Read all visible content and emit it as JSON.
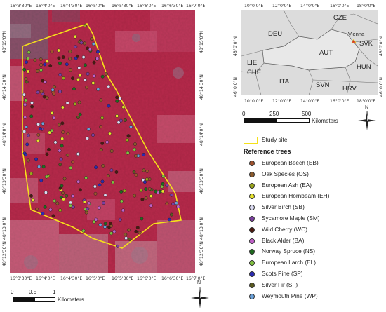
{
  "main_map": {
    "top_ticks": [
      "16°3'30\"E",
      "16°4'0\"E",
      "16°4'30\"E",
      "16°5'0\"E",
      "16°5'30\"E",
      "16°6'0\"E",
      "16°6'30\"E",
      "16°7'0\"E"
    ],
    "bottom_ticks": [
      "16°3'30\"E",
      "16°4'0\"E",
      "16°4'30\"E",
      "16°5'0\"E",
      "16°5'30\"E",
      "16°6'0\"E",
      "16°6'30\"E",
      "16°7'0\"E"
    ],
    "left_ticks": [
      "48°15'0\"N",
      "48°14'30\"N",
      "48°14'0\"N",
      "48°13'30\"N",
      "48°13'0\"N",
      "48°12'30\"N"
    ],
    "right_ticks": [
      "48°15'0\"N",
      "48°14'30\"N",
      "48°14'0\"N",
      "48°13'30\"N",
      "48°13'0\"N",
      "48°12'30\"N"
    ],
    "scalebar": {
      "labels": [
        "0",
        "0.5",
        "1"
      ],
      "unit": "Kilometers"
    },
    "north_label": "N"
  },
  "inset_map": {
    "top_ticks": [
      "10°0'0\"E",
      "12°0'0\"E",
      "14°0'0\"E",
      "16°0'0\"E",
      "18°0'0\"E"
    ],
    "bottom_ticks": [
      "10°0'0\"E",
      "12°0'0\"E",
      "14°0'0\"E",
      "16°0'0\"E",
      "18°0'0\"E"
    ],
    "left_ticks": [
      "48°0'0\"N",
      "46°0'0\"N"
    ],
    "right_ticks": [
      "48°0'0\"N",
      "46°0'0\"N"
    ],
    "countries": [
      "CZE",
      "DEU",
      "AUT",
      "SVK",
      "HUN",
      "LIE",
      "CHE",
      "ITA",
      "SVN",
      "HRV"
    ],
    "city": "Vienna",
    "scalebar": {
      "labels": [
        "0",
        "250",
        "500"
      ],
      "unit": "Kilometers"
    },
    "north_label": "N"
  },
  "legend": {
    "study_site": "Study site",
    "title": "Reference trees",
    "items": [
      {
        "label": "European Beech (EB)",
        "color": "#a0522d"
      },
      {
        "label": "Oak Species (OS)",
        "color": "#8b5a2b"
      },
      {
        "label": "European Ash (EA)",
        "color": "#9aa51a"
      },
      {
        "label": "European Hornbeam (EH)",
        "color": "#e6e22c"
      },
      {
        "label": "Silver Birch (SB)",
        "color": "#d9d9f0"
      },
      {
        "label": "Sycamore Maple (SM)",
        "color": "#7b3fa0"
      },
      {
        "label": "Wild Cherry (WC)",
        "color": "#4a1a10"
      },
      {
        "label": "Black Alder (BA)",
        "color": "#c060c8"
      },
      {
        "label": "Norway Spruce (NS)",
        "color": "#1e6b1e"
      },
      {
        "label": "European Larch (EL)",
        "color": "#7fbf3f"
      },
      {
        "label": "Scots Pine (SP)",
        "color": "#2a2ab0"
      },
      {
        "label": "Silver Fir (SF)",
        "color": "#5a5a20"
      },
      {
        "label": "Weymouth Pine (WP)",
        "color": "#6aa0d8"
      }
    ]
  },
  "colors": {
    "study_site": "#f5e11a",
    "background": "#c02a4e",
    "city_marker": "#d03030"
  }
}
